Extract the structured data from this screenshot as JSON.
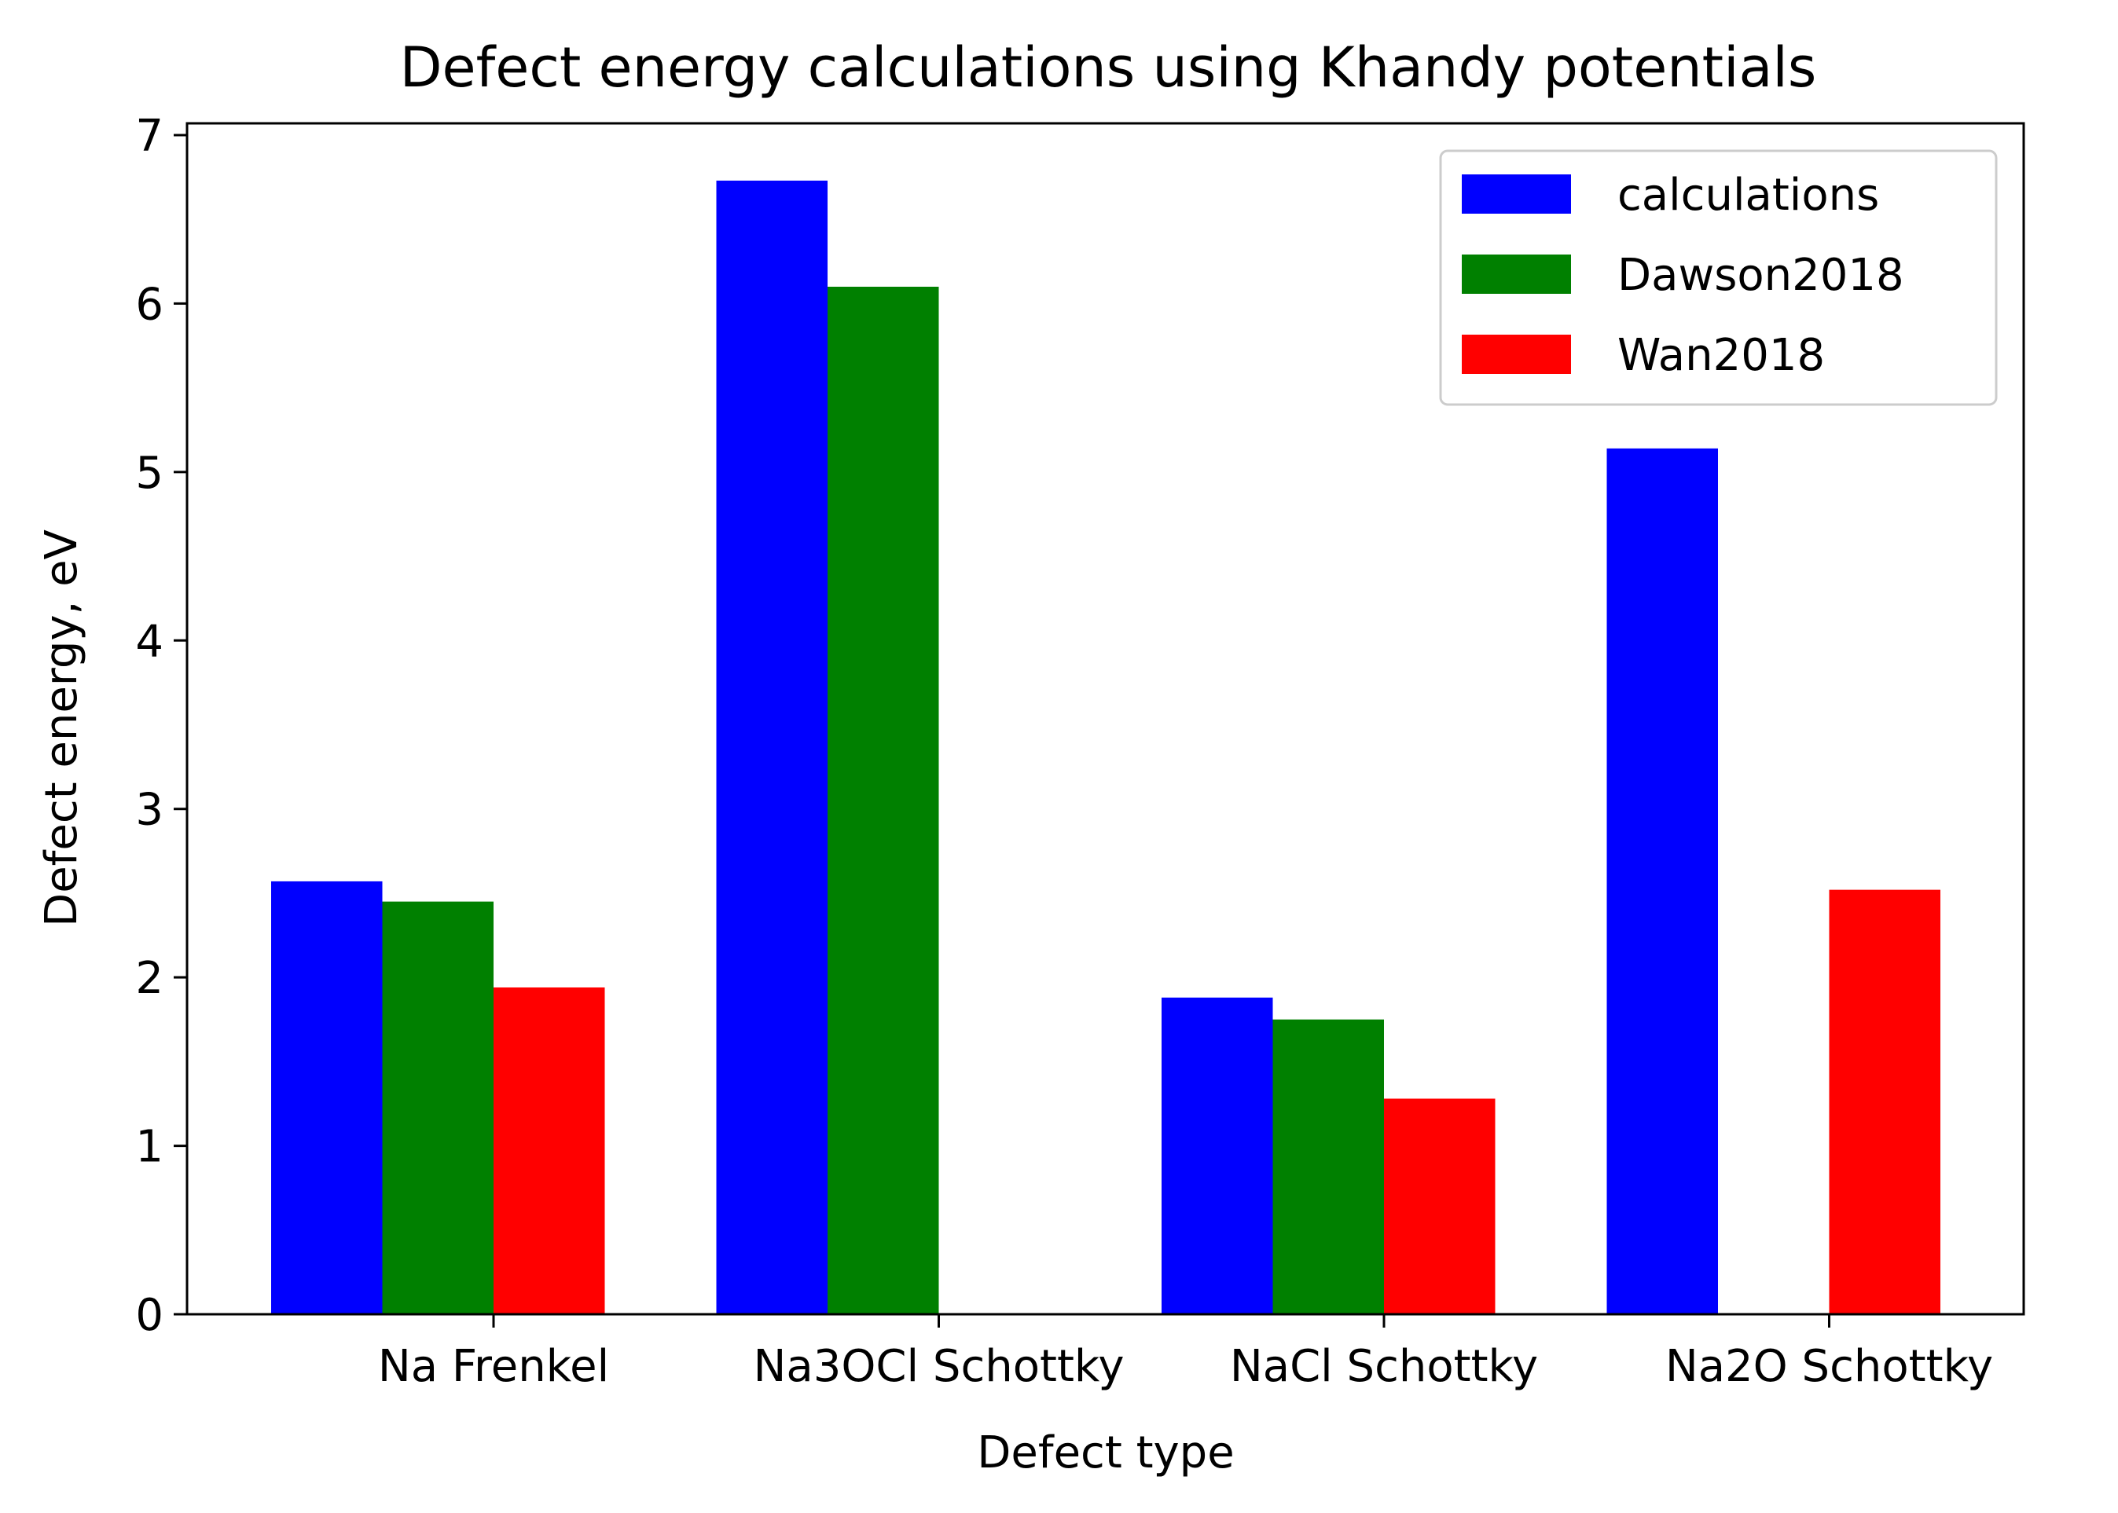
{
  "chart_data": {
    "type": "bar",
    "title": "Defect energy calculations using Khandy potentials",
    "xlabel": "Defect type",
    "ylabel": "Defect energy, eV",
    "categories": [
      "Na Frenkel",
      "Na3OCl Schottky",
      "NaCl Schottky",
      "Na2O Schottky"
    ],
    "series": [
      {
        "name": "calculations",
        "color": "#0000ff",
        "values": [
          2.57,
          6.73,
          1.88,
          5.14
        ]
      },
      {
        "name": "Dawson2018",
        "color": "#008000",
        "values": [
          2.45,
          6.1,
          1.75,
          null
        ]
      },
      {
        "name": "Wan2018",
        "color": "#ff0000",
        "values": [
          1.94,
          null,
          1.28,
          2.52
        ]
      }
    ],
    "ylim": [
      0,
      7.07
    ],
    "yticks": [
      0,
      1,
      2,
      3,
      4,
      5,
      6,
      7
    ],
    "grid": false,
    "legend_position": "top-right"
  }
}
